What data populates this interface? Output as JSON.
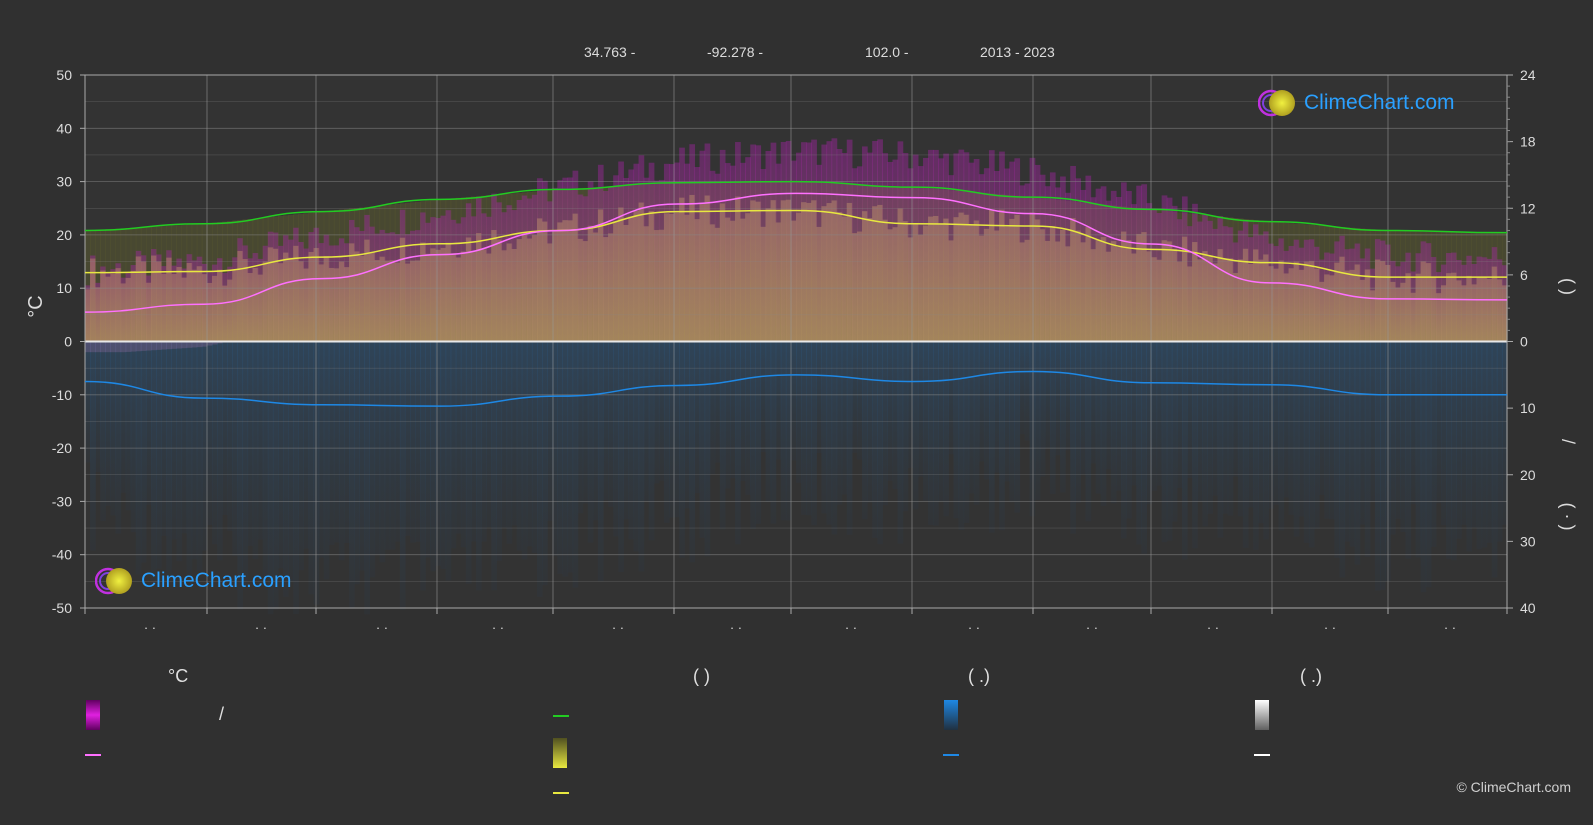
{
  "header": {
    "lat": "34.763 -",
    "lon": "-92.278 -",
    "elev": "102.0 -",
    "years": "2013 - 2023"
  },
  "axes": {
    "left_label": "°C",
    "left_ticks": [
      "50",
      "40",
      "30",
      "20",
      "10",
      "0",
      "-10",
      "-20",
      "-30",
      "-40",
      "-50"
    ],
    "right_top_ticks": [
      "24",
      "18",
      "12",
      "6",
      "0"
    ],
    "right_bottom_ticks": [
      "10",
      "20",
      "30",
      "40"
    ],
    "right_label_top": "(    )",
    "right_label_bottom": "/",
    "right_label_bottom2": "(  ·  )",
    "x_ticks": [
      "· ·",
      "· ·",
      "· ·",
      "· ·",
      "· ·",
      "· ·",
      "· ·",
      "· ·",
      "· ·",
      "· ·",
      "· ·",
      "· ·"
    ]
  },
  "logo": {
    "text": "ClimeChart.com"
  },
  "legend": {
    "col1_title": "°C",
    "col2_title": "(          )",
    "col3_title": "(   .)",
    "col4_title": "(   .)",
    "col1_row1_text": "/",
    "colors": {
      "temp_range": "#e020e0",
      "mean_temp": "#ff70ff",
      "daylight": "#22cc22",
      "sunshine": "#e8e840",
      "sunshine_line": "#e8e840",
      "rain": "#1e88e5",
      "rain_line": "#1e88e5",
      "snow": "#ffffff",
      "snow_line": "#ffffff"
    }
  },
  "copyright": "© ClimeChart.com",
  "chart_data": {
    "type": "line",
    "x_label": "",
    "ylim_left": [
      -50,
      50
    ],
    "ylim_right_top": [
      0,
      24
    ],
    "ylim_right_bottom": [
      0,
      40
    ],
    "x_months": 12,
    "series": [
      {
        "key": "daylight",
        "axis": "right_top",
        "color": "#22cc22",
        "x": [
          0,
          1,
          2,
          3,
          4,
          5,
          6,
          7,
          8,
          9,
          10,
          11,
          12
        ],
        "values": [
          10.0,
          10.6,
          11.7,
          12.8,
          13.7,
          14.3,
          14.4,
          13.9,
          13.0,
          11.9,
          10.8,
          10.0,
          9.8
        ]
      },
      {
        "key": "sunshine",
        "axis": "right_top",
        "color": "#e8e840",
        "x": [
          0,
          1,
          2,
          3,
          4,
          5,
          6,
          7,
          8,
          9,
          10,
          11,
          12
        ],
        "values": [
          6.2,
          6.3,
          7.6,
          8.8,
          10.0,
          11.7,
          11.8,
          10.6,
          10.4,
          8.3,
          7.1,
          5.8,
          5.8
        ]
      },
      {
        "key": "mean_temp",
        "axis": "left",
        "color": "#ff70ff",
        "x": [
          0,
          1,
          2,
          3,
          4,
          5,
          6,
          7,
          8,
          9,
          10,
          11,
          12
        ],
        "values": [
          5.5,
          7.0,
          11.8,
          16.3,
          20.8,
          25.8,
          27.8,
          27.0,
          24.0,
          18.3,
          11.0,
          8.0,
          7.8
        ]
      },
      {
        "key": "rain",
        "axis": "right_bottom",
        "color": "#1e88e5",
        "x": [
          0,
          1,
          2,
          3,
          4,
          5,
          6,
          7,
          8,
          9,
          10,
          11,
          12
        ],
        "values": [
          6.0,
          8.5,
          9.5,
          9.7,
          8.2,
          6.6,
          5.0,
          6.0,
          4.5,
          6.2,
          6.5,
          8.0,
          8.0
        ]
      }
    ]
  }
}
